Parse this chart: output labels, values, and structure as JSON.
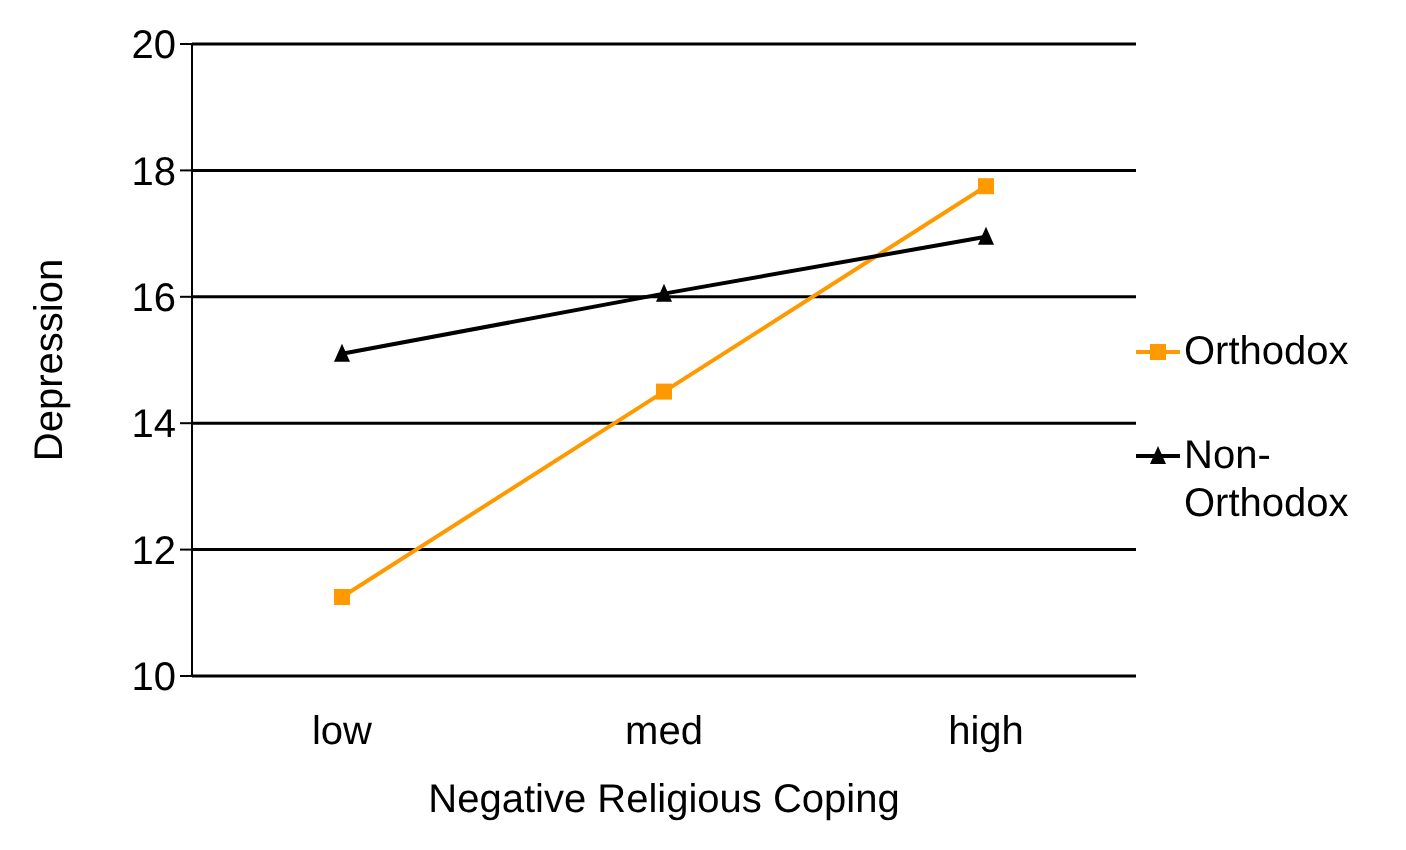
{
  "chart_data": {
    "type": "line",
    "xlabel": "Negative Religious Coping",
    "ylabel": "Depression",
    "categories": [
      "low",
      "med",
      "high"
    ],
    "series": [
      {
        "name": "Orthodox",
        "color": "#ff9900",
        "marker": "square",
        "values": [
          11.25,
          14.5,
          17.75
        ]
      },
      {
        "name": "Non-Orthodox",
        "color": "#000000",
        "marker": "triangle",
        "values": [
          15.1,
          16.05,
          16.95
        ]
      }
    ],
    "ylim": [
      10,
      20
    ],
    "yticks": [
      10,
      12,
      14,
      16,
      18,
      20
    ],
    "grid": "y",
    "legend": "right",
    "line_style": "solid"
  }
}
